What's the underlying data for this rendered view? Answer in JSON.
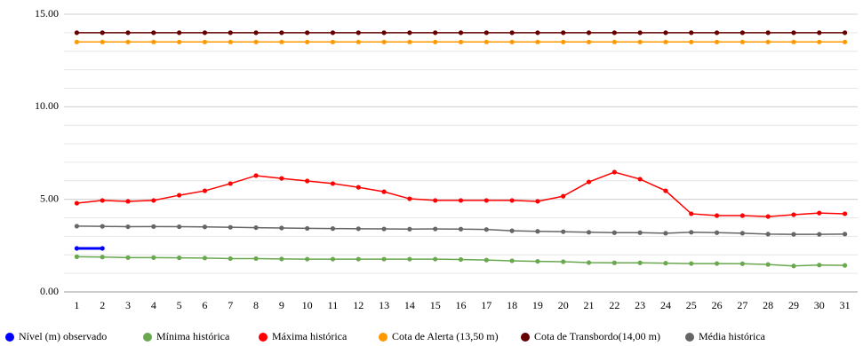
{
  "chart_data": {
    "type": "line",
    "categories": [
      "1",
      "2",
      "3",
      "4",
      "5",
      "6",
      "7",
      "8",
      "9",
      "10",
      "11",
      "12",
      "13",
      "14",
      "15",
      "16",
      "17",
      "18",
      "19",
      "20",
      "21",
      "22",
      "23",
      "24",
      "25",
      "26",
      "27",
      "28",
      "29",
      "30",
      "31"
    ],
    "series": [
      {
        "name": "Nível (m) observado",
        "color": "#0000ff",
        "values": [
          2.35,
          2.35,
          null,
          null,
          null,
          null,
          null,
          null,
          null,
          null,
          null,
          null,
          null,
          null,
          null,
          null,
          null,
          null,
          null,
          null,
          null,
          null,
          null,
          null,
          null,
          null,
          null,
          null,
          null,
          null,
          null
        ]
      },
      {
        "name": "Mínima histórica",
        "color": "#6aa84f",
        "values": [
          1.9,
          1.88,
          1.85,
          1.85,
          1.84,
          1.83,
          1.8,
          1.8,
          1.78,
          1.77,
          1.77,
          1.77,
          1.77,
          1.77,
          1.77,
          1.75,
          1.72,
          1.68,
          1.65,
          1.63,
          1.58,
          1.57,
          1.57,
          1.55,
          1.53,
          1.53,
          1.52,
          1.48,
          1.4,
          1.45,
          1.43
        ]
      },
      {
        "name": "Máxima histórica",
        "color": "#ff0000",
        "values": [
          4.79,
          4.94,
          4.89,
          4.94,
          5.22,
          5.46,
          5.85,
          6.28,
          6.13,
          5.99,
          5.85,
          5.65,
          5.41,
          5.03,
          4.94,
          4.94,
          4.94,
          4.94,
          4.89,
          5.17,
          5.94,
          6.47,
          6.09,
          5.46,
          4.22,
          4.12,
          4.12,
          4.07,
          4.17,
          4.26,
          4.22
        ]
      },
      {
        "name": "Cota de Alerta (13,50 m)",
        "color": "#ff9900",
        "values": [
          13.5,
          13.5,
          13.5,
          13.5,
          13.5,
          13.5,
          13.5,
          13.5,
          13.5,
          13.5,
          13.5,
          13.5,
          13.5,
          13.5,
          13.5,
          13.5,
          13.5,
          13.5,
          13.5,
          13.5,
          13.5,
          13.5,
          13.5,
          13.5,
          13.5,
          13.5,
          13.5,
          13.5,
          13.5,
          13.5,
          13.5
        ]
      },
      {
        "name": "Cota de Transbordo(14,00 m)",
        "color": "#660000",
        "values": [
          14,
          14,
          14,
          14,
          14,
          14,
          14,
          14,
          14,
          14,
          14,
          14,
          14,
          14,
          14,
          14,
          14,
          14,
          14,
          14,
          14,
          14,
          14,
          14,
          14,
          14,
          14,
          14,
          14,
          14,
          14
        ]
      },
      {
        "name": "Média histórica",
        "color": "#666666",
        "values": [
          3.55,
          3.54,
          3.52,
          3.53,
          3.52,
          3.51,
          3.49,
          3.47,
          3.45,
          3.43,
          3.42,
          3.41,
          3.4,
          3.39,
          3.4,
          3.39,
          3.37,
          3.3,
          3.27,
          3.25,
          3.22,
          3.2,
          3.2,
          3.17,
          3.22,
          3.2,
          3.17,
          3.12,
          3.11,
          3.11,
          3.12
        ]
      }
    ],
    "ylim": [
      0,
      15
    ],
    "yticks": [
      {
        "value": 0,
        "label": "0.00"
      },
      {
        "value": 5,
        "label": "5.00"
      },
      {
        "value": 10,
        "label": "10.00"
      },
      {
        "value": 15,
        "label": "15.00"
      }
    ],
    "grid": true,
    "legend": "bottom"
  }
}
